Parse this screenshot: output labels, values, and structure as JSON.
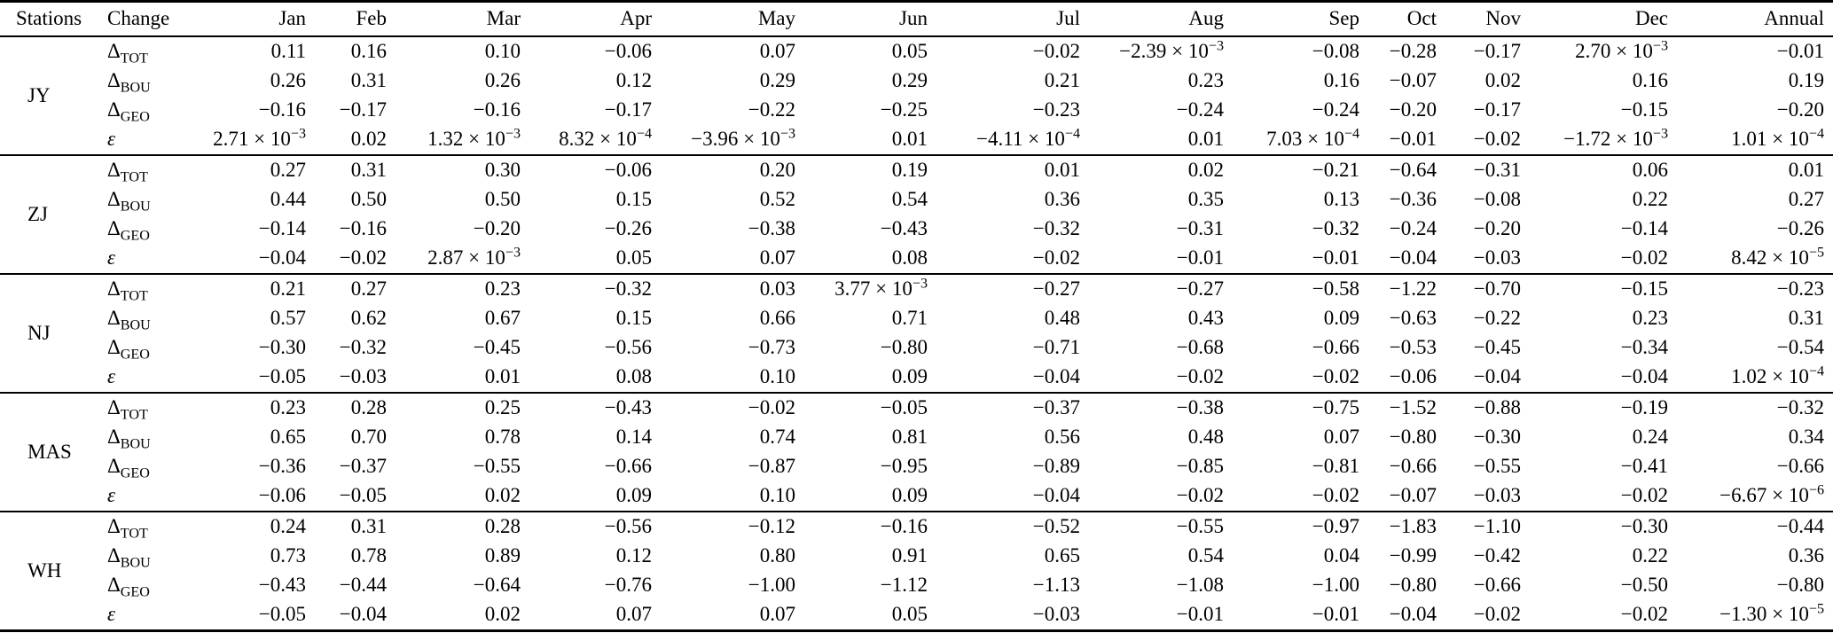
{
  "colors": {
    "background": "#ffffff",
    "text": "#000000",
    "rule": "#000000"
  },
  "table": {
    "columns": [
      "Stations",
      "Change",
      "Jan",
      "Feb",
      "Mar",
      "Apr",
      "May",
      "Jun",
      "Jul",
      "Aug",
      "Sep",
      "Oct",
      "Nov",
      "Dec",
      "Annual"
    ],
    "row_labels": [
      "Δ_TOT",
      "Δ_BOU",
      "Δ_GEO",
      "ε"
    ],
    "stations": [
      {
        "name": "JY",
        "rows": [
          {
            "change": "Δ_TOT",
            "values": [
              "0.11",
              "0.16",
              "0.10",
              "−0.06",
              "0.07",
              "0.05",
              "−0.02",
              "−2.39 × 10^−3",
              "−0.08",
              "−0.28",
              "−0.17",
              "2.70 × 10^−3",
              "−0.01"
            ]
          },
          {
            "change": "Δ_BOU",
            "values": [
              "0.26",
              "0.31",
              "0.26",
              "0.12",
              "0.29",
              "0.29",
              "0.21",
              "0.23",
              "0.16",
              "−0.07",
              "0.02",
              "0.16",
              "0.19"
            ]
          },
          {
            "change": "Δ_GEO",
            "values": [
              "−0.16",
              "−0.17",
              "−0.16",
              "−0.17",
              "−0.22",
              "−0.25",
              "−0.23",
              "−0.24",
              "−0.24",
              "−0.20",
              "−0.17",
              "−0.15",
              "−0.20"
            ]
          },
          {
            "change": "ε",
            "values": [
              "2.71 × 10^−3",
              "0.02",
              "1.32 × 10^−3",
              "8.32 × 10^−4",
              "−3.96 × 10^−3",
              "0.01",
              "−4.11 × 10^−4",
              "0.01",
              "7.03 × 10^−4",
              "−0.01",
              "−0.02",
              "−1.72 × 10^−3",
              "1.01 × 10^−4"
            ]
          }
        ]
      },
      {
        "name": "ZJ",
        "rows": [
          {
            "change": "Δ_TOT",
            "values": [
              "0.27",
              "0.31",
              "0.30",
              "−0.06",
              "0.20",
              "0.19",
              "0.01",
              "0.02",
              "−0.21",
              "−0.64",
              "−0.31",
              "0.06",
              "0.01"
            ]
          },
          {
            "change": "Δ_BOU",
            "values": [
              "0.44",
              "0.50",
              "0.50",
              "0.15",
              "0.52",
              "0.54",
              "0.36",
              "0.35",
              "0.13",
              "−0.36",
              "−0.08",
              "0.22",
              "0.27"
            ]
          },
          {
            "change": "Δ_GEO",
            "values": [
              "−0.14",
              "−0.16",
              "−0.20",
              "−0.26",
              "−0.38",
              "−0.43",
              "−0.32",
              "−0.31",
              "−0.32",
              "−0.24",
              "−0.20",
              "−0.14",
              "−0.26"
            ]
          },
          {
            "change": "ε",
            "values": [
              "−0.04",
              "−0.02",
              "2.87 × 10^−3",
              "0.05",
              "0.07",
              "0.08",
              "−0.02",
              "−0.01",
              "−0.01",
              "−0.04",
              "−0.03",
              "−0.02",
              "8.42 × 10^−5"
            ]
          }
        ]
      },
      {
        "name": "NJ",
        "rows": [
          {
            "change": "Δ_TOT",
            "values": [
              "0.21",
              "0.27",
              "0.23",
              "−0.32",
              "0.03",
              "3.77 × 10^−3",
              "−0.27",
              "−0.27",
              "−0.58",
              "−1.22",
              "−0.70",
              "−0.15",
              "−0.23"
            ]
          },
          {
            "change": "Δ_BOU",
            "values": [
              "0.57",
              "0.62",
              "0.67",
              "0.15",
              "0.66",
              "0.71",
              "0.48",
              "0.43",
              "0.09",
              "−0.63",
              "−0.22",
              "0.23",
              "0.31"
            ]
          },
          {
            "change": "Δ_GEO",
            "values": [
              "−0.30",
              "−0.32",
              "−0.45",
              "−0.56",
              "−0.73",
              "−0.80",
              "−0.71",
              "−0.68",
              "−0.66",
              "−0.53",
              "−0.45",
              "−0.34",
              "−0.54"
            ]
          },
          {
            "change": "ε",
            "values": [
              "−0.05",
              "−0.03",
              "0.01",
              "0.08",
              "0.10",
              "0.09",
              "−0.04",
              "−0.02",
              "−0.02",
              "−0.06",
              "−0.04",
              "−0.04",
              "1.02 × 10^−4"
            ]
          }
        ]
      },
      {
        "name": "MAS",
        "rows": [
          {
            "change": "Δ_TOT",
            "values": [
              "0.23",
              "0.28",
              "0.25",
              "−0.43",
              "−0.02",
              "−0.05",
              "−0.37",
              "−0.38",
              "−0.75",
              "−1.52",
              "−0.88",
              "−0.19",
              "−0.32"
            ]
          },
          {
            "change": "Δ_BOU",
            "values": [
              "0.65",
              "0.70",
              "0.78",
              "0.14",
              "0.74",
              "0.81",
              "0.56",
              "0.48",
              "0.07",
              "−0.80",
              "−0.30",
              "0.24",
              "0.34"
            ]
          },
          {
            "change": "Δ_GEO",
            "values": [
              "−0.36",
              "−0.37",
              "−0.55",
              "−0.66",
              "−0.87",
              "−0.95",
              "−0.89",
              "−0.85",
              "−0.81",
              "−0.66",
              "−0.55",
              "−0.41",
              "−0.66"
            ]
          },
          {
            "change": "ε",
            "values": [
              "−0.06",
              "−0.05",
              "0.02",
              "0.09",
              "0.10",
              "0.09",
              "−0.04",
              "−0.02",
              "−0.02",
              "−0.07",
              "−0.03",
              "−0.02",
              "−6.67 × 10^−6"
            ]
          }
        ]
      },
      {
        "name": "WH",
        "rows": [
          {
            "change": "Δ_TOT",
            "values": [
              "0.24",
              "0.31",
              "0.28",
              "−0.56",
              "−0.12",
              "−0.16",
              "−0.52",
              "−0.55",
              "−0.97",
              "−1.83",
              "−1.10",
              "−0.30",
              "−0.44"
            ]
          },
          {
            "change": "Δ_BOU",
            "values": [
              "0.73",
              "0.78",
              "0.89",
              "0.12",
              "0.80",
              "0.91",
              "0.65",
              "0.54",
              "0.04",
              "−0.99",
              "−0.42",
              "0.22",
              "0.36"
            ]
          },
          {
            "change": "Δ_GEO",
            "values": [
              "−0.43",
              "−0.44",
              "−0.64",
              "−0.76",
              "−1.00",
              "−1.12",
              "−1.13",
              "−1.08",
              "−1.00",
              "−0.80",
              "−0.66",
              "−0.50",
              "−0.80"
            ]
          },
          {
            "change": "ε",
            "values": [
              "−0.05",
              "−0.04",
              "0.02",
              "0.07",
              "0.07",
              "0.05",
              "−0.03",
              "−0.01",
              "−0.01",
              "−0.04",
              "−0.02",
              "−0.02",
              "−1.30 × 10^−5"
            ]
          }
        ]
      }
    ]
  }
}
